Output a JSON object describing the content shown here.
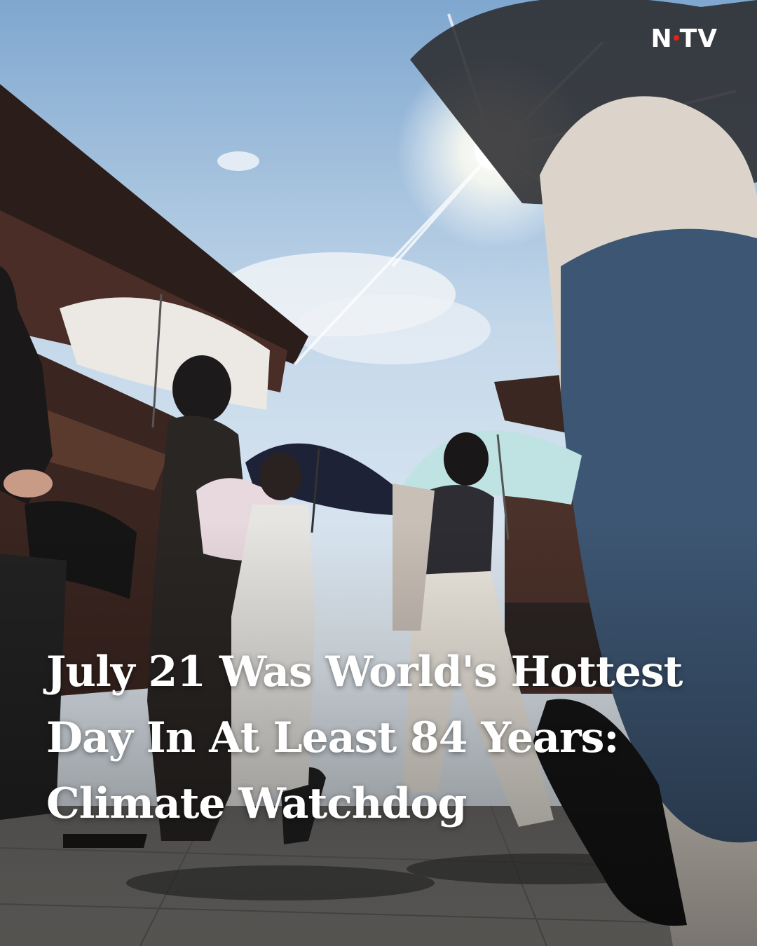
{
  "brand": {
    "logo_text_left": "N",
    "logo_text_right": "TV",
    "accent_color": "#e2231a"
  },
  "headline": {
    "lines": [
      "July 21 Was World's Hottest",
      "Day In At Least 84 Years:",
      "Climate Watchdog"
    ]
  },
  "scene": {
    "sky_color": "#cfe0ef",
    "ground_color": "#8b8a86"
  }
}
